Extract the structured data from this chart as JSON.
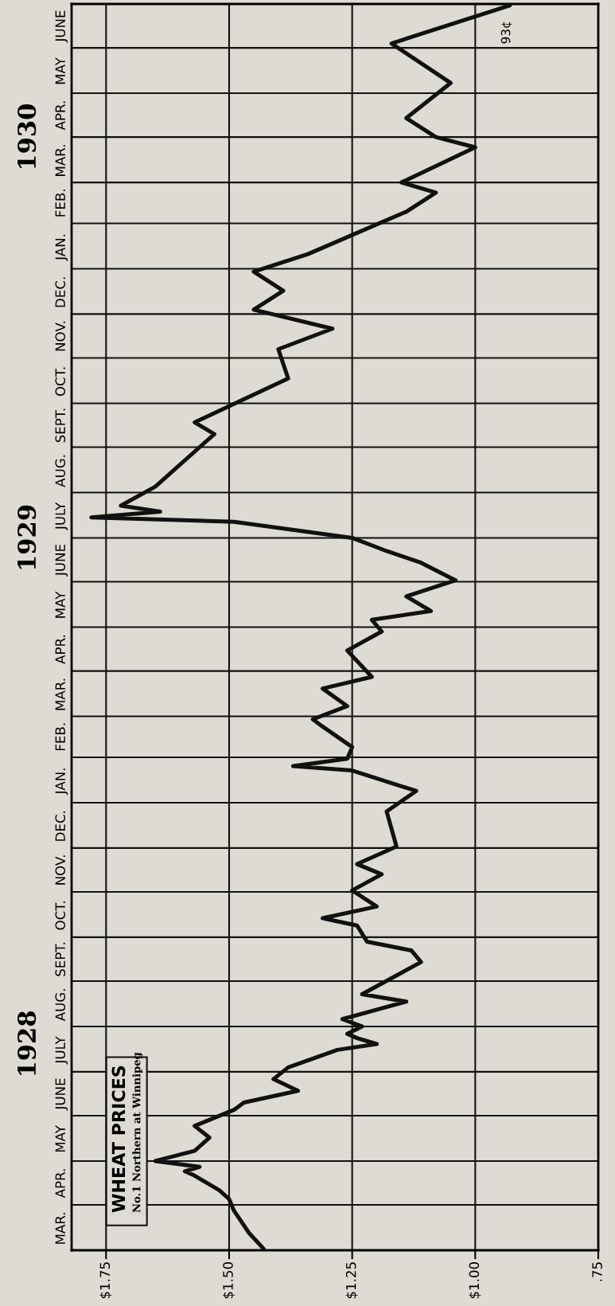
{
  "chart_data": {
    "type": "line",
    "orientation": "horizontal",
    "title": "WHEAT PRICES",
    "subtitle": "No.1 Northern at Winnipeg",
    "x": [
      "1928-03-02",
      "1928-03-13",
      "1928-03-28",
      "1928-04-05",
      "1928-04-11",
      "1928-04-21",
      "1928-04-24",
      "1928-04-27",
      "1928-05-01",
      "1928-05-08",
      "1928-05-17",
      "1928-05-25",
      "1928-06-05",
      "1928-06-10",
      "1928-06-18",
      "1928-06-26",
      "1928-07-04",
      "1928-07-16",
      "1928-07-20",
      "1928-07-24",
      "1928-07-27",
      "1928-08-01",
      "1928-08-06",
      "1928-08-18",
      "1928-08-23",
      "1928-09-14",
      "1928-09-22",
      "1928-09-28",
      "1928-10-09",
      "1928-10-14",
      "1928-10-22",
      "1928-11-02",
      "1928-11-13",
      "1928-11-20",
      "1928-12-02",
      "1928-12-26",
      "1929-01-09",
      "1929-01-23",
      "1929-01-26",
      "1929-01-31",
      "1929-02-08",
      "1929-02-22",
      "1929-02-27",
      "1929-03-08",
      "1929-03-20",
      "1929-03-28",
      "1929-04-15",
      "1929-04-28",
      "1929-05-06",
      "1929-05-12",
      "1929-05-22",
      "1929-06-02",
      "1929-06-14",
      "1929-06-22",
      "1929-07-01",
      "1929-07-12",
      "1929-07-15",
      "1929-07-19",
      "1929-07-23",
      "1929-08-05",
      "1929-09-10",
      "1929-09-18",
      "1929-10-18",
      "1929-11-07",
      "1929-11-21",
      "1929-12-04",
      "1929-12-17",
      "1929-12-30",
      "1930-01-11",
      "1930-02-09",
      "1930-02-22",
      "1930-03-01",
      "1930-03-25",
      "1930-04-01",
      "1930-04-14",
      "1930-05-08",
      "1930-06-04",
      "1930-06-30"
    ],
    "series": [
      {
        "color": "#111111",
        "values": [
          1.43,
          1.46,
          1.49,
          1.5,
          1.52,
          1.57,
          1.59,
          1.56,
          1.65,
          1.57,
          1.54,
          1.57,
          1.49,
          1.47,
          1.36,
          1.41,
          1.38,
          1.28,
          1.2,
          1.24,
          1.26,
          1.23,
          1.27,
          1.14,
          1.23,
          1.11,
          1.13,
          1.22,
          1.24,
          1.31,
          1.2,
          1.25,
          1.19,
          1.24,
          1.16,
          1.18,
          1.12,
          1.25,
          1.37,
          1.26,
          1.25,
          1.31,
          1.33,
          1.26,
          1.31,
          1.21,
          1.26,
          1.19,
          1.21,
          1.09,
          1.14,
          1.04,
          1.11,
          1.18,
          1.25,
          1.49,
          1.78,
          1.64,
          1.72,
          1.65,
          1.53,
          1.57,
          1.38,
          1.4,
          1.29,
          1.45,
          1.39,
          1.45,
          1.34,
          1.14,
          1.08,
          1.15,
          1.0,
          1.08,
          1.14,
          1.05,
          1.17,
          0.93
        ]
      }
    ],
    "xlim": [
      1.82,
      0.75
    ],
    "xticks": [
      {
        "value": 1.75,
        "label": "$1.75"
      },
      {
        "value": 1.5,
        "label": "$1.50"
      },
      {
        "value": 1.25,
        "label": "$1.25"
      },
      {
        "value": 1.0,
        "label": "$1.00"
      },
      {
        "value": 0.75,
        "label": ".75"
      }
    ],
    "ylim": [
      "1928-03-01",
      "1930-07-01"
    ],
    "yticks": [
      {
        "value": "1928-03-01",
        "label": null
      },
      {
        "value": "1928-03-16",
        "label": "MAR."
      },
      {
        "value": "1928-04-01",
        "label": null
      },
      {
        "value": "1928-04-16",
        "label": "APR."
      },
      {
        "value": "1928-05-01",
        "label": null
      },
      {
        "value": "1928-05-16",
        "label": "MAY"
      },
      {
        "value": "1928-06-01",
        "label": null
      },
      {
        "value": "1928-06-16",
        "label": "JUNE"
      },
      {
        "value": "1928-07-01",
        "label": null
      },
      {
        "value": "1928-07-16",
        "label": "JULY"
      },
      {
        "value": "1928-08-01",
        "label": null
      },
      {
        "value": "1928-08-16",
        "label": "AUG."
      },
      {
        "value": "1928-09-01",
        "label": null
      },
      {
        "value": "1928-09-16",
        "label": "SEPT."
      },
      {
        "value": "1928-10-01",
        "label": null
      },
      {
        "value": "1928-10-16",
        "label": "OCT."
      },
      {
        "value": "1928-11-01",
        "label": null
      },
      {
        "value": "1928-11-16",
        "label": "NOV."
      },
      {
        "value": "1928-12-01",
        "label": null
      },
      {
        "value": "1928-12-16",
        "label": "DEC."
      },
      {
        "value": "1929-01-01",
        "label": null
      },
      {
        "value": "1929-01-16",
        "label": "JAN."
      },
      {
        "value": "1929-02-01",
        "label": null
      },
      {
        "value": "1929-02-15",
        "label": "FEB."
      },
      {
        "value": "1929-03-01",
        "label": null
      },
      {
        "value": "1929-03-16",
        "label": "MAR."
      },
      {
        "value": "1929-04-01",
        "label": null
      },
      {
        "value": "1929-04-16",
        "label": "APR."
      },
      {
        "value": "1929-05-01",
        "label": null
      },
      {
        "value": "1929-05-16",
        "label": "MAY"
      },
      {
        "value": "1929-06-01",
        "label": null
      },
      {
        "value": "1929-06-16",
        "label": "JUNE"
      },
      {
        "value": "1929-07-01",
        "label": null
      },
      {
        "value": "1929-07-16",
        "label": "JULY"
      },
      {
        "value": "1929-08-01",
        "label": null
      },
      {
        "value": "1929-08-16",
        "label": "AUG."
      },
      {
        "value": "1929-09-01",
        "label": null
      },
      {
        "value": "1929-09-16",
        "label": "SEPT."
      },
      {
        "value": "1929-10-01",
        "label": null
      },
      {
        "value": "1929-10-16",
        "label": "OCT."
      },
      {
        "value": "1929-11-01",
        "label": null
      },
      {
        "value": "1929-11-16",
        "label": "NOV."
      },
      {
        "value": "1929-12-01",
        "label": null
      },
      {
        "value": "1929-12-16",
        "label": "DEC."
      },
      {
        "value": "1930-01-01",
        "label": null
      },
      {
        "value": "1930-01-16",
        "label": "JAN."
      },
      {
        "value": "1930-02-01",
        "label": null
      },
      {
        "value": "1930-02-15",
        "label": "FEB."
      },
      {
        "value": "1930-03-01",
        "label": null
      },
      {
        "value": "1930-03-16",
        "label": "MAR."
      },
      {
        "value": "1930-04-01",
        "label": null
      },
      {
        "value": "1930-04-16",
        "label": "APR."
      },
      {
        "value": "1930-05-01",
        "label": null
      },
      {
        "value": "1930-05-16",
        "label": "MAY"
      },
      {
        "value": "1930-06-01",
        "label": null
      },
      {
        "value": "1930-06-16",
        "label": "JUNE"
      }
    ],
    "y2lim": [
      "1928-03-01",
      "1930-07-01"
    ],
    "y2ticks": [
      {
        "value": "1928-07-20",
        "label": "1928"
      },
      {
        "value": "1929-07-01",
        "label": "1929"
      },
      {
        "value": "1930-04-01",
        "label": "1930"
      }
    ],
    "annotations": [
      {
        "text": "93¢",
        "x": 0.93,
        "y": "1930-06-30"
      }
    ],
    "grid": true,
    "line_style": "solid",
    "marker": "none",
    "legend": false
  }
}
